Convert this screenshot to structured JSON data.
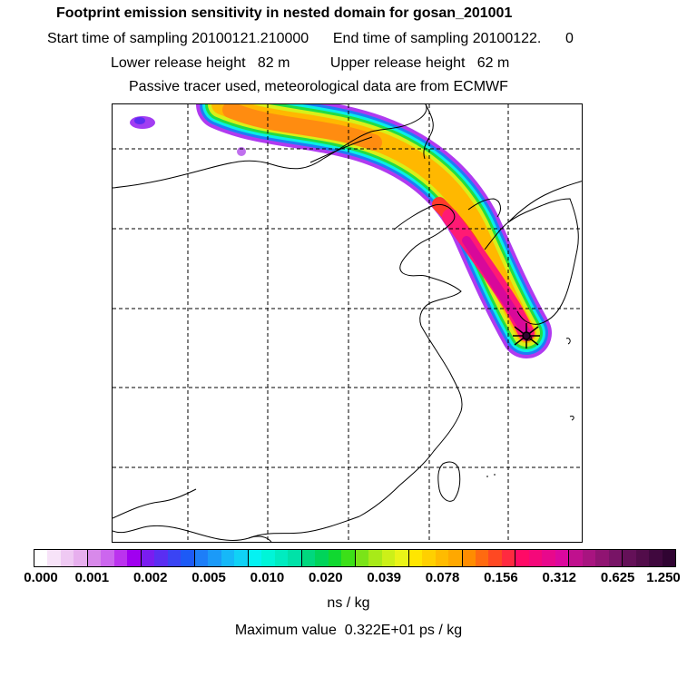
{
  "header": {
    "title": "Footprint emission sensitivity in nested domain for gosan_201001",
    "line2": "Start time of sampling 20100121.210000      End time of sampling 20100122.      0",
    "line3": "Lower release height   82 m          Upper release height   62 m",
    "line4": "Passive tracer used, meteorological data are from ECMWF"
  },
  "map": {
    "receptor_marker": "receptor-star-icon",
    "grid": "dashed lat/lon lines",
    "plume": "high sensitivity band from northwest toward Gosan, Jeju"
  },
  "colorbar": {
    "tick_labels": [
      "0.000",
      "0.001",
      "0.002",
      "0.005",
      "0.010",
      "0.020",
      "0.039",
      "0.078",
      "0.156",
      "0.312",
      "0.625",
      "1.250"
    ],
    "colors": [
      "#ffffff",
      "#f7e3f8",
      "#efc9f3",
      "#e7afee",
      "#d889ea",
      "#cc66ee",
      "#bb33ee",
      "#a000f0",
      "#7a1cf0",
      "#5a2ef2",
      "#3a44f4",
      "#1d5af6",
      "#1d7ef8",
      "#1b9af8",
      "#16b8f8",
      "#10d2f6",
      "#05f2f2",
      "#00f5d8",
      "#00ecc0",
      "#00e2a8",
      "#00d87e",
      "#00d45a",
      "#10d830",
      "#3ce018",
      "#7ae418",
      "#a8ea18",
      "#ccf018",
      "#eaf418",
      "#ffe600",
      "#ffd000",
      "#ffbb00",
      "#ffa800",
      "#ff8c00",
      "#ff6a10",
      "#ff4822",
      "#ff2a40",
      "#ff0a66",
      "#f5087a",
      "#e8088c",
      "#dc089e",
      "#c0108e",
      "#a81480",
      "#901472",
      "#781466",
      "#641058",
      "#520c4a",
      "#40083e",
      "#300432"
    ],
    "unit": "ns / kg"
  },
  "footer": {
    "max_value": "Maximum value  0.322E+01 ps / kg"
  }
}
